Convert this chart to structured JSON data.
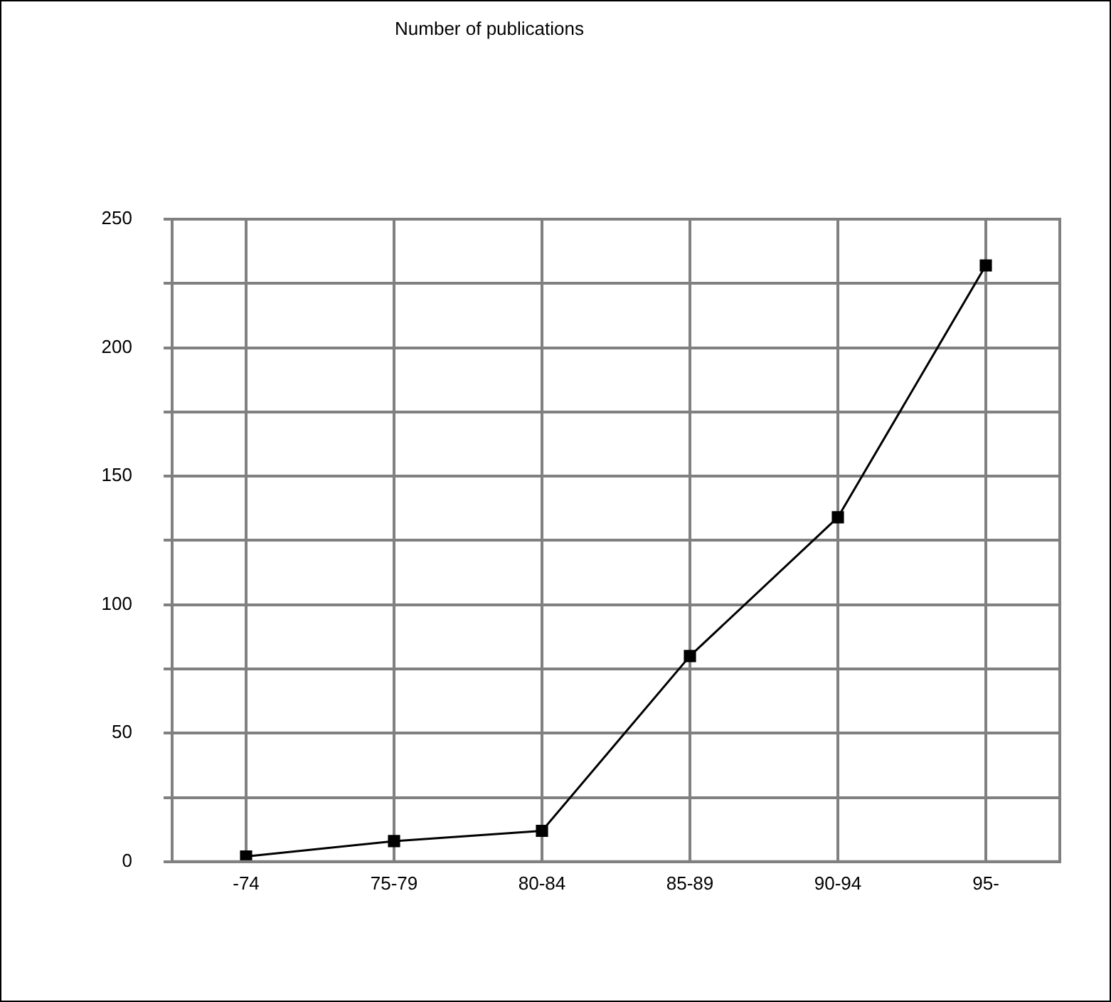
{
  "chart_data": {
    "type": "line",
    "title": "Number of publications",
    "categories": [
      "-74",
      "75-79",
      "80-84",
      "85-89",
      "90-94",
      "95-"
    ],
    "series": [
      {
        "color": "#000000",
        "values": [
          2,
          8,
          12,
          80,
          134,
          232
        ]
      }
    ],
    "ylim": [
      0,
      250
    ],
    "yticks": [
      0,
      {
        "value": 25,
        "label": null
      },
      50,
      {
        "value": 75,
        "label": null
      },
      100,
      {
        "value": 125,
        "label": null
      },
      150,
      {
        "value": 175,
        "label": null
      },
      200,
      {
        "value": 225,
        "label": null
      },
      250
    ],
    "grid": true,
    "legend": false,
    "marker": "square",
    "line_style": "solid"
  }
}
